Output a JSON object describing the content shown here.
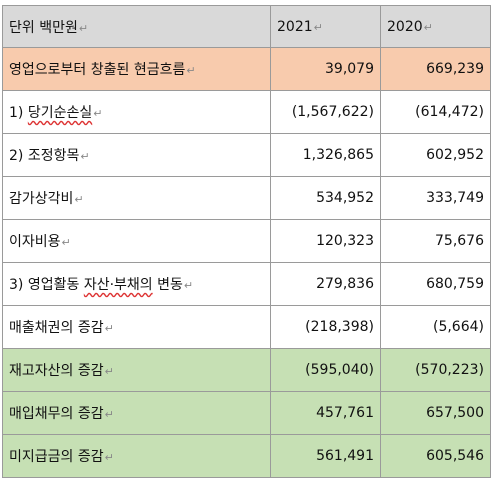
{
  "table": {
    "header": {
      "unit_label": "단위 백만원",
      "col_2021": "2021",
      "col_2020": "2020"
    },
    "rows": [
      {
        "label": "영업으로부터 창출된 현금흐름",
        "v2021": "39,079",
        "v2020": "669,239"
      },
      {
        "number": "1)",
        "label": "당기순손실",
        "v2021": "(1,567,622)",
        "v2020": "(614,472)"
      },
      {
        "number": "2)",
        "label": "조정항목",
        "v2021": "1,326,865",
        "v2020": "602,952"
      },
      {
        "label": "감가상각비",
        "v2021": "534,952",
        "v2020": "333,749"
      },
      {
        "label": "이자비용",
        "v2021": "120,323",
        "v2020": "75,676"
      },
      {
        "number": "3)",
        "label_a": "영업활동",
        "label_b": "자산·부채의",
        "label_c": "변동",
        "v2021": "279,836",
        "v2020": "680,759"
      },
      {
        "label": "매출채권의 증감",
        "v2021": "(218,398)",
        "v2020": "(5,664)"
      },
      {
        "label": "재고자산의 증감",
        "v2021": "(595,040)",
        "v2020": "(570,223)"
      },
      {
        "label": "매입채무의 증감",
        "v2021": "457,761",
        "v2020": "657,500"
      },
      {
        "label": "미지급금의 증감",
        "v2021": "561,491",
        "v2020": "605,546"
      }
    ],
    "colors": {
      "header_bg": "#d9d9d9",
      "operating_bg": "#f8cbad",
      "green_bg": "#c6e0b4",
      "border": "#9a9a9a"
    },
    "icons": {
      "paragraph_mark": "return-arrow-icon"
    }
  }
}
